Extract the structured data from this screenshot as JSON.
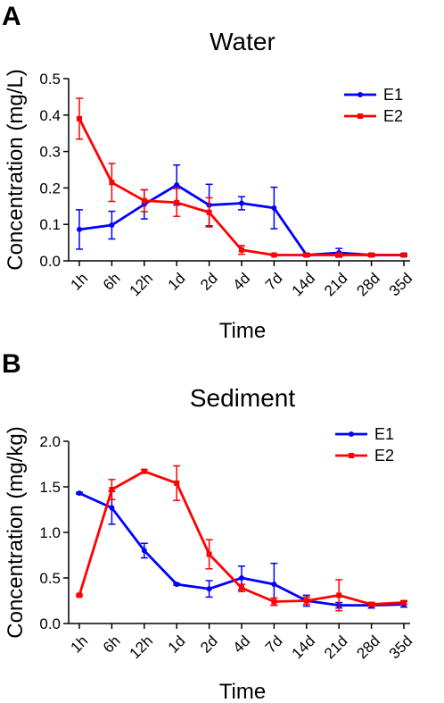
{
  "chart_data": [
    {
      "type": "line",
      "panel_letter": "A",
      "title": "Water",
      "xlabel": "Time",
      "ylabel": "Concentration (mg/L)",
      "categories": [
        "1h",
        "6h",
        "12h",
        "1d",
        "2d",
        "4d",
        "7d",
        "14d",
        "21d",
        "28d",
        "35d"
      ],
      "ylim": [
        0,
        0.5
      ],
      "yticks": [
        0.0,
        0.1,
        0.2,
        0.3,
        0.4,
        0.5
      ],
      "ytick_labels": [
        "0.0",
        "0.1",
        "0.2",
        "0.3",
        "0.4",
        "0.5"
      ],
      "legend_position": "top-right",
      "series": [
        {
          "name": "E1",
          "color": "#0000ff",
          "values": [
            0.086,
            0.098,
            0.155,
            0.208,
            0.153,
            0.158,
            0.145,
            0.016,
            0.022,
            0.016,
            0.016
          ],
          "errors": [
            0.054,
            0.038,
            0.04,
            0.055,
            0.057,
            0.018,
            0.057,
            0.004,
            0.012,
            0.004,
            0.004
          ]
        },
        {
          "name": "E2",
          "color": "#ff0000",
          "values": [
            0.39,
            0.215,
            0.165,
            0.16,
            0.133,
            0.03,
            0.016,
            0.016,
            0.016,
            0.016,
            0.016
          ],
          "errors": [
            0.056,
            0.052,
            0.03,
            0.038,
            0.04,
            0.012,
            0.002,
            0.002,
            0.004,
            0.002,
            0.002
          ]
        }
      ]
    },
    {
      "type": "line",
      "panel_letter": "B",
      "title": "Sediment",
      "xlabel": "Time",
      "ylabel": "Concentration (mg/kg)",
      "categories": [
        "1h",
        "6h",
        "12h",
        "1d",
        "2d",
        "4d",
        "7d",
        "14d",
        "21d",
        "28d",
        "35d"
      ],
      "ylim": [
        0,
        2.0
      ],
      "yticks": [
        0.0,
        0.5,
        1.0,
        1.5,
        2.0
      ],
      "ytick_labels": [
        "0.0",
        "0.5",
        "1.0",
        "1.5",
        "2.0"
      ],
      "legend_position": "top-right",
      "series": [
        {
          "name": "E1",
          "color": "#0000ff",
          "values": [
            1.43,
            1.27,
            0.8,
            0.43,
            0.38,
            0.5,
            0.43,
            0.25,
            0.2,
            0.2,
            0.21
          ],
          "errors": [
            0.01,
            0.18,
            0.08,
            0.01,
            0.09,
            0.13,
            0.23,
            0.06,
            0.03,
            0.03,
            0.03
          ]
        },
        {
          "name": "E2",
          "color": "#ff0000",
          "values": [
            0.31,
            1.47,
            1.67,
            1.54,
            0.76,
            0.39,
            0.24,
            0.25,
            0.31,
            0.21,
            0.23
          ],
          "errors": [
            0.01,
            0.11,
            0.02,
            0.19,
            0.16,
            0.04,
            0.04,
            0.04,
            0.17,
            0.02,
            0.02
          ]
        }
      ]
    }
  ]
}
